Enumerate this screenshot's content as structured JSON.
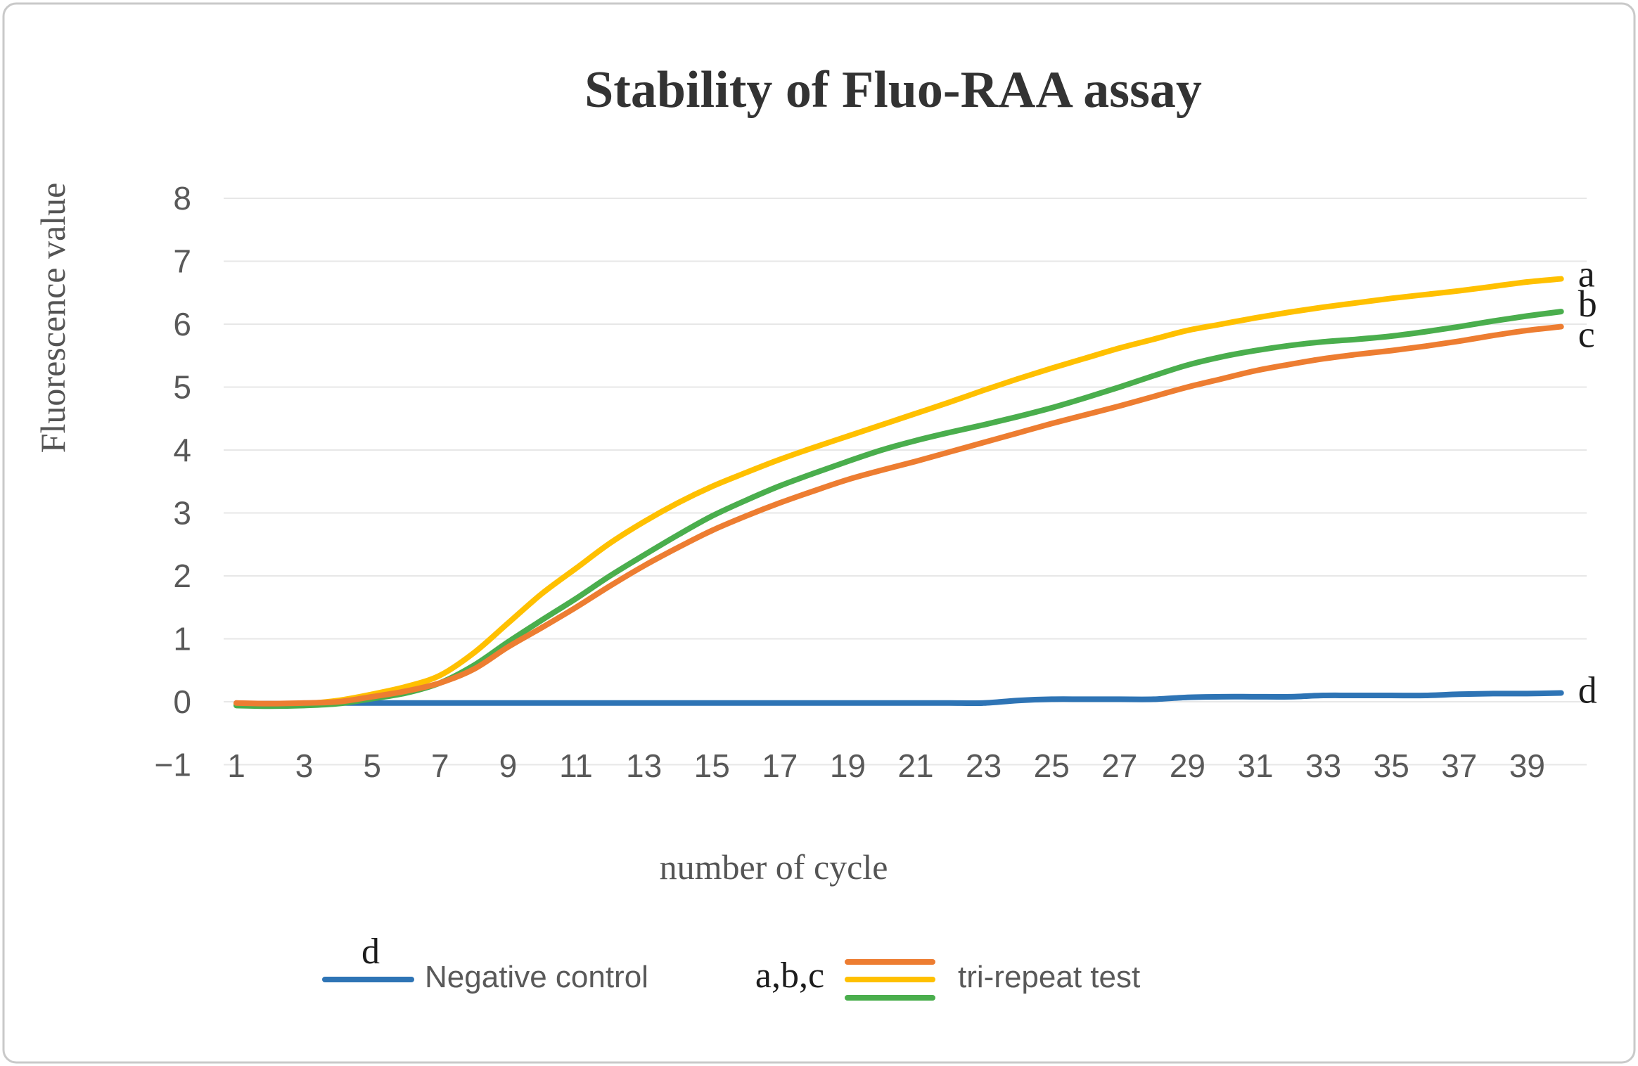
{
  "figure": {
    "border_color": "#c9c9c9",
    "background": "#ffffff"
  },
  "chart_data": {
    "type": "line",
    "title": "Stability of Fluo-RAA assay",
    "xlabel": "number of cycle",
    "ylabel": "Fluorescence value",
    "xlim": [
      1,
      40
    ],
    "ylim": [
      -1,
      8
    ],
    "grid": "horizontal",
    "grid_color": "#e7e7e7",
    "x_tick_labels": [
      "1",
      "3",
      "5",
      "7",
      "9",
      "11",
      "13",
      "15",
      "17",
      "19",
      "21",
      "23",
      "25",
      "27",
      "29",
      "31",
      "33",
      "35",
      "37",
      "39"
    ],
    "x_tick_values": [
      1,
      3,
      5,
      7,
      9,
      11,
      13,
      15,
      17,
      19,
      21,
      23,
      25,
      27,
      29,
      31,
      33,
      35,
      37,
      39
    ],
    "y_tick_labels": [
      "8",
      "7",
      "6",
      "5",
      "4",
      "3",
      "2",
      "1",
      "0",
      "−1"
    ],
    "y_tick_values": [
      8,
      7,
      6,
      5,
      4,
      3,
      2,
      1,
      0,
      -1
    ],
    "cycles": [
      1,
      2,
      3,
      4,
      5,
      6,
      7,
      8,
      9,
      10,
      11,
      12,
      13,
      14,
      15,
      16,
      17,
      18,
      19,
      20,
      21,
      22,
      23,
      24,
      25,
      26,
      27,
      28,
      29,
      30,
      31,
      32,
      33,
      34,
      35,
      36,
      37,
      38,
      39,
      40
    ],
    "series": [
      {
        "name": "d",
        "end_label": "d",
        "legend": "Negative control",
        "color": "#2E74B5",
        "values": [
          -0.03,
          -0.03,
          -0.03,
          -0.02,
          -0.02,
          -0.02,
          -0.02,
          -0.02,
          -0.02,
          -0.02,
          -0.02,
          -0.02,
          -0.02,
          -0.02,
          -0.02,
          -0.02,
          -0.02,
          -0.02,
          -0.02,
          -0.02,
          -0.02,
          -0.02,
          -0.02,
          0.02,
          0.04,
          0.04,
          0.04,
          0.04,
          0.07,
          0.08,
          0.08,
          0.08,
          0.1,
          0.1,
          0.1,
          0.1,
          0.12,
          0.13,
          0.13,
          0.14
        ]
      },
      {
        "name": "a",
        "end_label": "a",
        "legend": "tri-repeat test",
        "color": "#FFC000",
        "values": [
          -0.03,
          -0.04,
          -0.03,
          0.02,
          0.12,
          0.24,
          0.42,
          0.78,
          1.25,
          1.72,
          2.12,
          2.52,
          2.86,
          3.16,
          3.42,
          3.64,
          3.85,
          4.04,
          4.22,
          4.4,
          4.58,
          4.76,
          4.95,
          5.13,
          5.3,
          5.46,
          5.62,
          5.76,
          5.9,
          6.0,
          6.1,
          6.19,
          6.27,
          6.34,
          6.41,
          6.47,
          6.53,
          6.6,
          6.67,
          6.72
        ]
      },
      {
        "name": "b",
        "end_label": "b",
        "legend": "tri-repeat test",
        "color": "#4AAE4D",
        "values": [
          -0.06,
          -0.07,
          -0.06,
          -0.03,
          0.05,
          0.14,
          0.3,
          0.58,
          0.95,
          1.3,
          1.64,
          2.0,
          2.33,
          2.65,
          2.95,
          3.2,
          3.43,
          3.63,
          3.82,
          4.0,
          4.15,
          4.28,
          4.4,
          4.53,
          4.67,
          4.83,
          5.0,
          5.18,
          5.35,
          5.48,
          5.58,
          5.66,
          5.72,
          5.76,
          5.81,
          5.88,
          5.96,
          6.05,
          6.13,
          6.2
        ]
      },
      {
        "name": "c",
        "end_label": "c",
        "legend": "tri-repeat test",
        "color": "#ED7D31",
        "values": [
          -0.02,
          -0.03,
          -0.02,
          0.0,
          0.08,
          0.17,
          0.3,
          0.52,
          0.87,
          1.18,
          1.5,
          1.84,
          2.16,
          2.45,
          2.72,
          2.95,
          3.16,
          3.35,
          3.53,
          3.68,
          3.82,
          3.97,
          4.12,
          4.27,
          4.42,
          4.56,
          4.7,
          4.85,
          5.0,
          5.13,
          5.26,
          5.36,
          5.45,
          5.52,
          5.58,
          5.65,
          5.73,
          5.82,
          5.9,
          5.96
        ]
      }
    ],
    "legend": [
      {
        "prefix": "d",
        "label": "Negative control",
        "colors": [
          "#2E74B5"
        ]
      },
      {
        "prefix": "a,b,c",
        "label": "tri-repeat test",
        "colors": [
          "#ED7D31",
          "#FFC000",
          "#4AAE4D"
        ]
      }
    ],
    "legend_position": "bottom"
  }
}
